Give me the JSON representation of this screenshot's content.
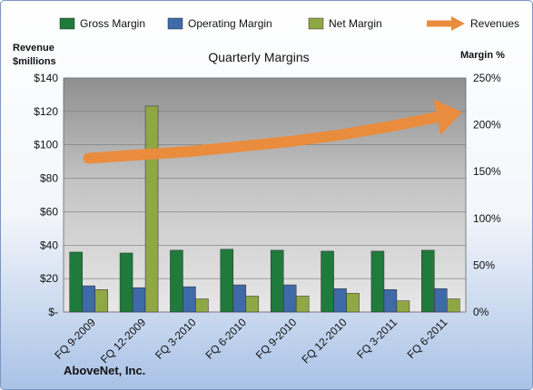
{
  "chart_data": {
    "type": "bar",
    "title": "Quarterly Margins",
    "company": "AboveNet, Inc.",
    "categories": [
      "FQ 9-2009",
      "FQ 12-2009",
      "FQ 3-2010",
      "FQ 6-2010",
      "FQ 9-2010",
      "FQ 12-2010",
      "FQ 3-2011",
      "FQ 6-2011"
    ],
    "series": [
      {
        "name": "Gross Margin",
        "axis": "right",
        "color": "#1f7a3c",
        "values": [
          64,
          63,
          66,
          67,
          66,
          65,
          65,
          66
        ]
      },
      {
        "name": "Operating Margin",
        "axis": "right",
        "color": "#3f6aa8",
        "values": [
          28,
          26,
          27,
          29,
          29,
          25,
          24,
          25
        ]
      },
      {
        "name": "Net Margin",
        "axis": "right",
        "color": "#8fa844",
        "values": [
          24,
          220,
          14,
          17,
          17,
          20,
          12,
          14
        ]
      },
      {
        "name": "Revenues",
        "axis": "left",
        "type": "line",
        "color": "#ea8c3d",
        "values": [
          92,
          94,
          96,
          99,
          102,
          106,
          111,
          117
        ]
      }
    ],
    "ylabel_left": "Revenue\n$millions",
    "ylabel_right": "Margin %",
    "ylim_left": [
      0,
      140
    ],
    "ylim_right": [
      0,
      250
    ],
    "yticks_left": [
      "$140",
      "$120",
      "$100",
      "$80",
      "$60",
      "$40",
      "$20",
      "$-"
    ],
    "yticks_right": [
      "250%",
      "200%",
      "150%",
      "100%",
      "50%",
      "0%"
    ],
    "legend_position": "top",
    "grid": true
  }
}
